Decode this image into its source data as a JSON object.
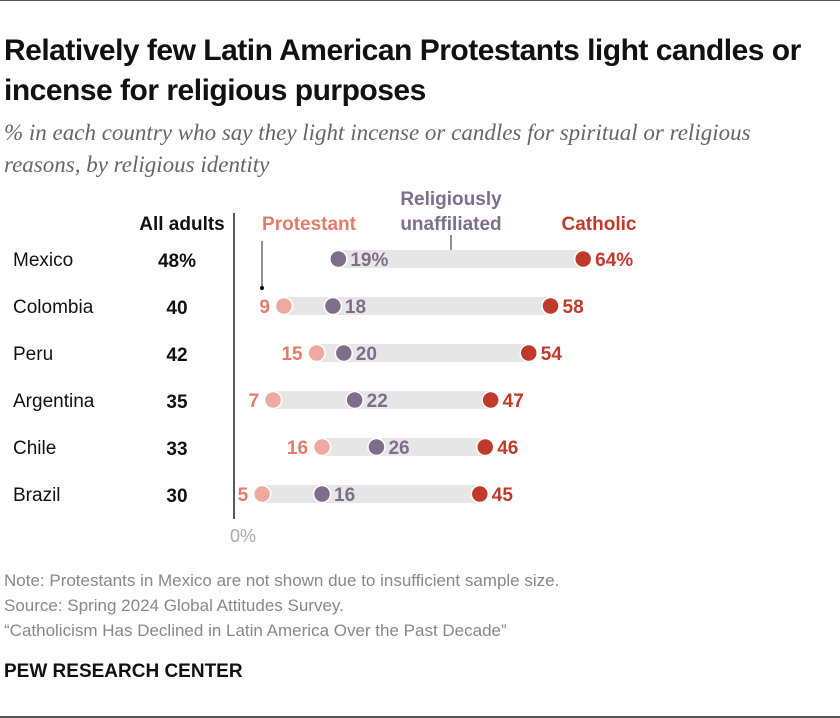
{
  "title": "Relatively few Latin American Protestants light candles or incense for religious purposes",
  "subtitle": "% in each country who say they light incense or candles for spiritual or religious reasons, by religious identity",
  "chart_data": {
    "type": "dot",
    "xlim": [
      0,
      100
    ],
    "axis_zero_label": "0%",
    "all_adults_header": "All adults",
    "categories": [
      "Mexico",
      "Colombia",
      "Peru",
      "Argentina",
      "Chile",
      "Brazil"
    ],
    "all_adults": [
      48,
      40,
      42,
      35,
      33,
      30
    ],
    "all_adults_labels": [
      "48%",
      "40",
      "42",
      "35",
      "33",
      "30"
    ],
    "series": [
      {
        "name": "Protestant",
        "color": "#e47b6c",
        "dot_color": "#eeaaa0",
        "values": [
          null,
          9,
          15,
          7,
          16,
          5
        ],
        "labels": [
          "",
          "9",
          "15",
          "7",
          "16",
          "5"
        ]
      },
      {
        "name": "Religiously unaffiliated",
        "name_lines": [
          "Religiously",
          "unaffiliated"
        ],
        "color": "#7e6e8b",
        "dot_color": "#7e6e8b",
        "values": [
          19,
          18,
          20,
          22,
          26,
          16
        ],
        "labels": [
          "19%",
          "18",
          "20",
          "22",
          "26",
          "16"
        ]
      },
      {
        "name": "Catholic",
        "color": "#c0392b",
        "dot_color": "#c0392b",
        "values": [
          64,
          58,
          54,
          47,
          46,
          45
        ],
        "labels": [
          "64%",
          "58",
          "54",
          "47",
          "46",
          "45"
        ]
      }
    ],
    "bar_color": "#e6e6e6"
  },
  "notes": [
    "Note: Protestants in Mexico are not shown due to insufficient sample size.",
    "Source: Spring 2024 Global Attitudes Survey.",
    "“Catholicism Has Declined in Latin America Over the Past Decade”"
  ],
  "brand": "PEW RESEARCH CENTER"
}
